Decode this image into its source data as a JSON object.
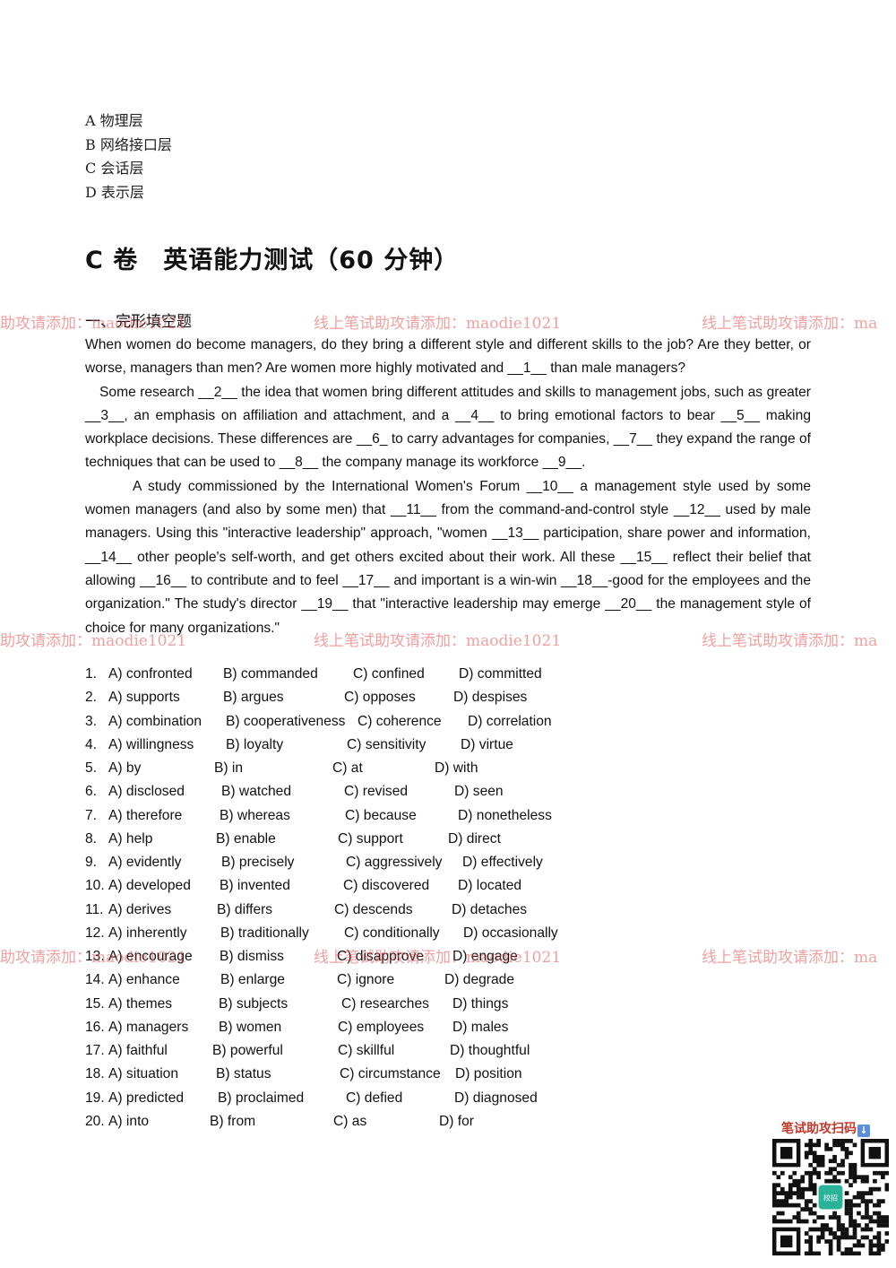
{
  "top_options": [
    "A 物理层",
    "B 网络接口层",
    "C 会话层",
    "D 表示层"
  ],
  "section_title": "C 卷　英语能力测试（60 分钟）",
  "subsection_title": "一、完形填空题",
  "passage": {
    "p1": "When women do become managers, do they bring a different style and different skills to the job? Are they better, or worse, managers than men? Are women more highly motivated and __1__ than male managers?",
    "p2": "Some research __2__ the idea that women bring different attitudes and skills to management jobs, such as greater __3__, an emphasis on affiliation and attachment, and a __4__ to bring emotional factors to bear __5__ making workplace decisions. These differences are __6_ to carry advantages for companies, __7__ they expand the range of techniques that can be used to __8__ the company manage its workforce __9__.",
    "p3": "A study commissioned by the International Women's Forum __10__ a management style used by some women managers (and also by some men) that __11__ from the command-and-control style __12__ used by male managers. Using this \"interactive leadership\" approach, \"women __13__ participation, share power and information, __14__ other people's self-worth, and get others excited about their work. All these __15__ reflect their belief that allowing __16__ to contribute and to feel __17__ and important is a win-win __18__-good for the employees and the organization.\" The study's director __19__ that \"interactive leadership may emerge __20__ the management style of choice for many organizations.\""
  },
  "options": [
    {
      "num": "1.",
      "a": "A) confronted",
      "b": "B) commanded",
      "c": "C) confined",
      "d": "D) committed"
    },
    {
      "num": "2.",
      "a": "A) supports",
      "b": "B) argues",
      "c": "C) opposes",
      "d": "D) despises"
    },
    {
      "num": "3.",
      "a": "A) combination",
      "b": "B) cooperativeness",
      "c": "C) coherence",
      "d": "D) correlation"
    },
    {
      "num": "4.",
      "a": "A) willingness",
      "b": "B) loyalty",
      "c": "C) sensitivity",
      "d": "D) virtue"
    },
    {
      "num": "5.",
      "a": "A) by",
      "b": "B) in",
      "c": "C) at",
      "d": "D) with"
    },
    {
      "num": "6.",
      "a": "A) disclosed",
      "b": "B) watched",
      "c": "C) revised",
      "d": "D) seen"
    },
    {
      "num": "7.",
      "a": "A) therefore",
      "b": "B) whereas",
      "c": "C) because",
      "d": "D) nonetheless"
    },
    {
      "num": "8.",
      "a": "A) help",
      "b": "B) enable",
      "c": "C) support",
      "d": "D) direct"
    },
    {
      "num": "9.",
      "a": "A) evidently",
      "b": "B) precisely",
      "c": "C) aggressively",
      "d": "D) effectively"
    },
    {
      "num": "10.",
      "a": "A) developed",
      "b": "B) invented",
      "c": "C) discovered",
      "d": "D) located"
    },
    {
      "num": "11.",
      "a": "A) derives",
      "b": "B) differs",
      "c": "C) descends",
      "d": "D) detaches"
    },
    {
      "num": "12.",
      "a": "A) inherently",
      "b": "B) traditionally",
      "c": "C) conditionally",
      "d": "D) occasionally"
    },
    {
      "num": "13.",
      "a": "A) encourage",
      "b": "B) dismiss",
      "c": "C) disapprove",
      "d": "D) engage"
    },
    {
      "num": "14.",
      "a": "A) enhance",
      "b": "B) enlarge",
      "c": "C) ignore",
      "d": "D) degrade"
    },
    {
      "num": "15.",
      "a": "A) themes",
      "b": "B) subjects",
      "c": "C) researches",
      "d": "D) things"
    },
    {
      "num": "16.",
      "a": "A) managers",
      "b": "B) women",
      "c": "C) employees",
      "d": "D) males"
    },
    {
      "num": "17.",
      "a": "A) faithful",
      "b": "B) powerful",
      "c": "C) skillful",
      "d": "D) thoughtful"
    },
    {
      "num": "18.",
      "a": "A) situation",
      "b": "B) status",
      "c": "C) circumstance",
      "d": "D) position"
    },
    {
      "num": "19.",
      "a": "A) predicted",
      "b": "B) proclaimed",
      "c": "C) defied",
      "d": "D) diagnosed"
    },
    {
      "num": "20.",
      "a": "A) into",
      "b": "B) from",
      "c": "C) as",
      "d": "D) for"
    }
  ],
  "watermark": {
    "text_full": "线上笔试助攻请添加：maodie1021",
    "text_left": "助攻请添加：maodie1021",
    "text_right": "线上笔试助攻请添加：ma",
    "color": "#e65050"
  },
  "qr": {
    "caption": "笔试助攻扫码",
    "caption_icon": "down-arrow-icon",
    "center_logo_text": "校招"
  }
}
